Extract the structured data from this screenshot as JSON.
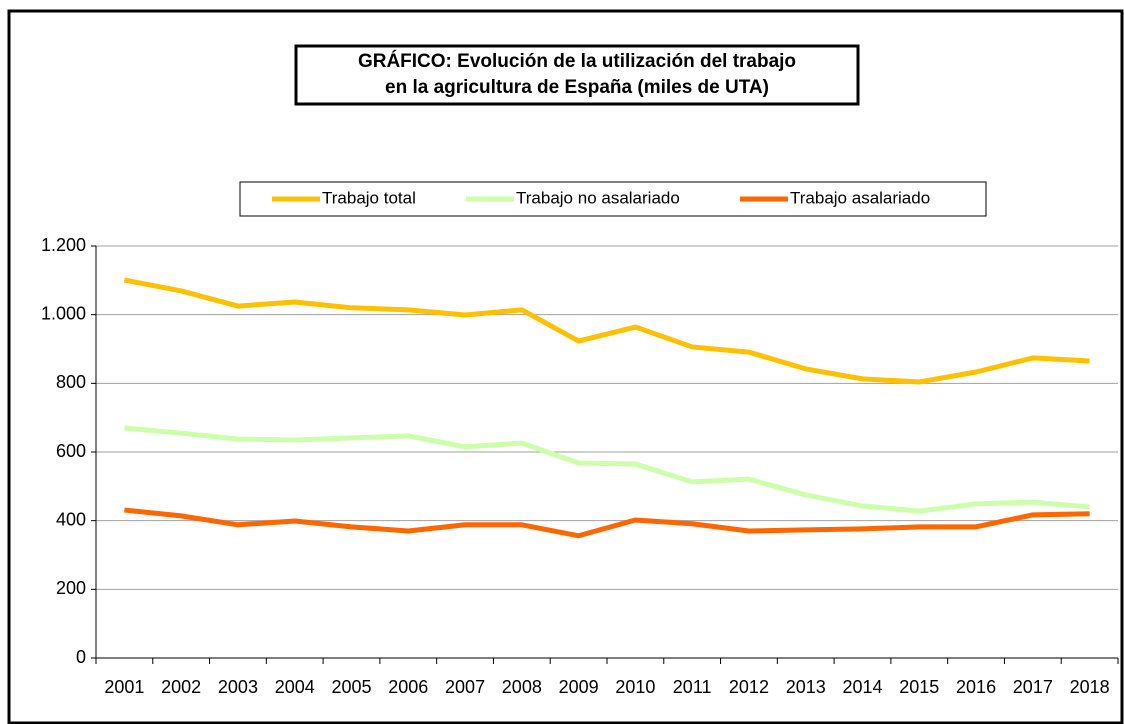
{
  "chart_data": {
    "type": "line",
    "title": [
      "GRÁFICO: Evolución de la utilización del trabajo",
      "en la agricultura de España (miles de UTA)"
    ],
    "categories": [
      "2001",
      "2002",
      "2003",
      "2004",
      "2005",
      "2006",
      "2007",
      "2008",
      "2009",
      "2010",
      "2011",
      "2012",
      "2013",
      "2014",
      "2015",
      "2016",
      "2017",
      "2018"
    ],
    "series": [
      {
        "name": "Trabajo total",
        "color": "#FFC000",
        "values": [
          1101,
          1069,
          1025,
          1037,
          1020,
          1014,
          999,
          1014,
          923,
          964,
          906,
          891,
          842,
          813,
          804,
          833,
          874,
          865
        ]
      },
      {
        "name": "Trabajo no asalariado",
        "color": "#CCFFAA",
        "values": [
          670,
          655,
          638,
          635,
          641,
          647,
          615,
          626,
          568,
          565,
          513,
          521,
          475,
          443,
          428,
          449,
          454,
          440
        ]
      },
      {
        "name": "Trabajo asalariado",
        "color": "#FF6600",
        "values": [
          431,
          414,
          388,
          399,
          382,
          370,
          388,
          388,
          356,
          402,
          391,
          370,
          373,
          376,
          382,
          382,
          417,
          420
        ]
      }
    ],
    "ylim": [
      0,
      1200
    ],
    "yticks": [
      0,
      200,
      400,
      600,
      800,
      {
        "value": 1000,
        "label": "1.000"
      },
      {
        "value": 1200,
        "label": "1.200"
      }
    ],
    "grid": true,
    "legend": "top"
  }
}
